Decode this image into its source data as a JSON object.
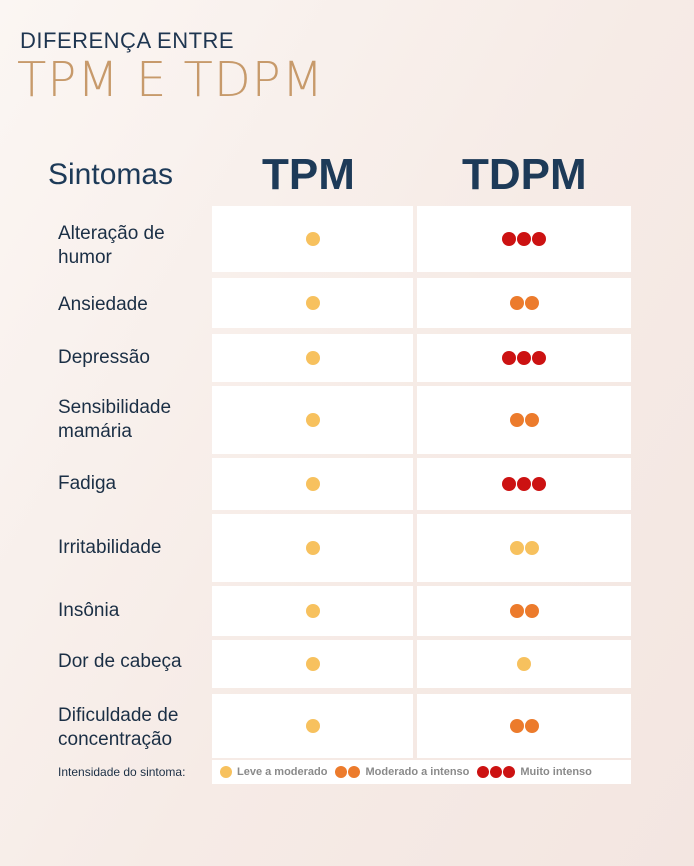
{
  "header": {
    "pretitle": "DIFERENÇA ENTRE",
    "title": "TPM E TDPM"
  },
  "columns": {
    "symptoms": "Sintomas",
    "tpm": "TPM",
    "tdpm": "TDPM"
  },
  "rows": [
    {
      "label": "Alteração de humor",
      "tpm": "leve",
      "tdpm": "muito"
    },
    {
      "label": "Ansiedade",
      "tpm": "leve",
      "tdpm": "mod"
    },
    {
      "label": "Depressão",
      "tpm": "leve",
      "tdpm": "muito"
    },
    {
      "label": "Sensibilidade mamária",
      "tpm": "leve",
      "tdpm": "mod"
    },
    {
      "label": "Fadiga",
      "tpm": "leve",
      "tdpm": "muito"
    },
    {
      "label": "Irritabilidade",
      "tpm": "leve",
      "tdpm": "leve2"
    },
    {
      "label": "Insônia",
      "tpm": "leve",
      "tdpm": "mod"
    },
    {
      "label": "Dor de cabeça",
      "tpm": "leve",
      "tdpm": "leve"
    },
    {
      "label": "Dificuldade de concentração",
      "tpm": "leve",
      "tdpm": "mod"
    }
  ],
  "legend": {
    "label": "Intensidade do sintoma:",
    "leve": "Leve a moderado",
    "mod": "Moderado a intenso",
    "muito": "Muito intenso"
  },
  "colors": {
    "leve": "#f7c15e",
    "mod": "#ec7b2c",
    "muito": "#cc1212",
    "title_gold": "#c79a6b",
    "navy": "#1d3a58"
  }
}
